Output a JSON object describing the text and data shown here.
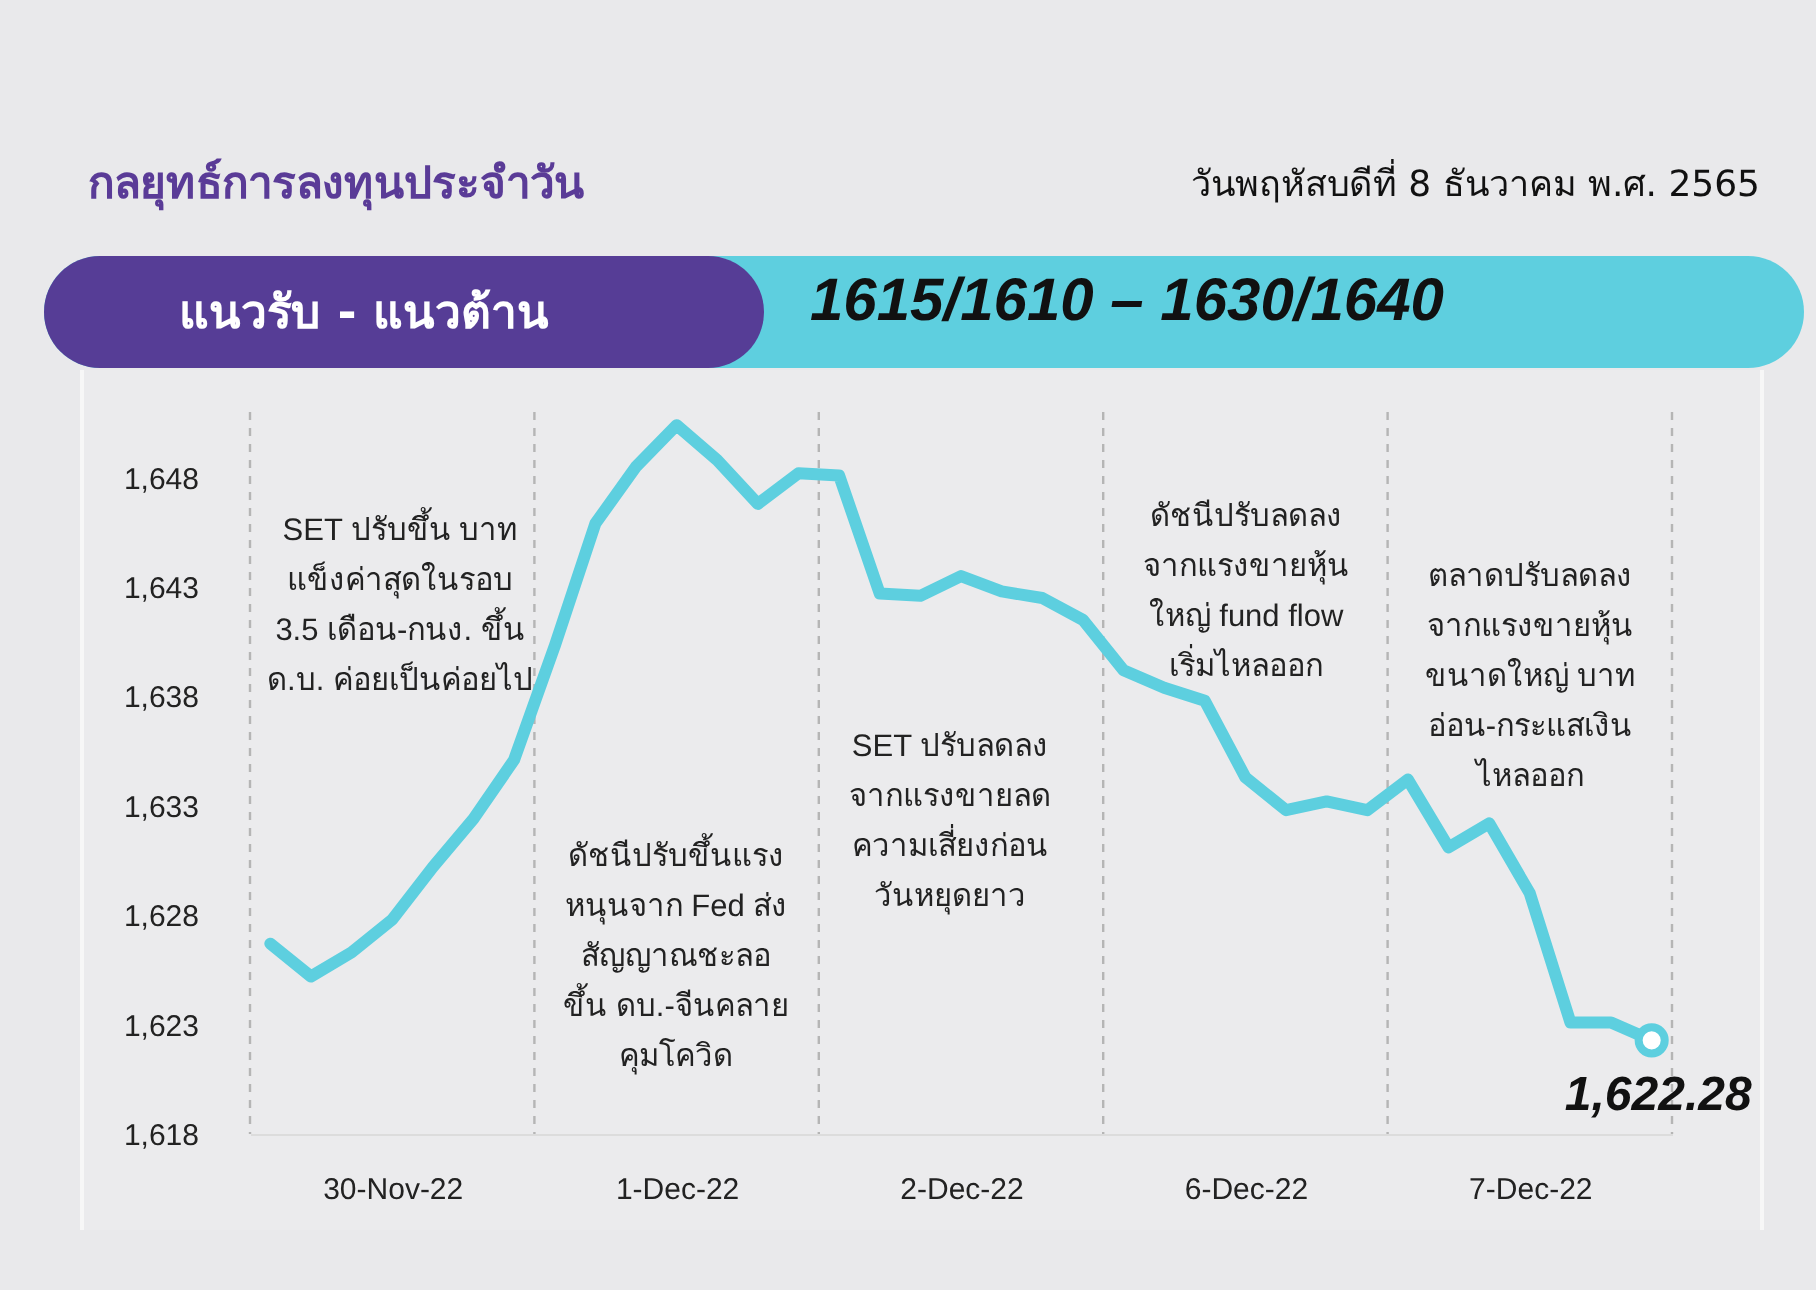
{
  "chart_data": {
    "type": "line",
    "title": "กลยุทธ์การลงทุนประจำวัน",
    "subtitle": "วันพฤหัสบดีที่ 8 ธันวาคม พ.ศ. 2565",
    "annotations": [
      "แนวรับ - แนวต้าน",
      "1615/1610 – 1630/1640",
      "SET ปรับขึ้น บาท\nแข็งค่าสุดในรอบ\n3.5 เดือน-กนง. ขึ้น\nด.บ. ค่อยเป็นค่อยไป",
      "ดัชนีปรับขึ้นแรง\nหนุนจาก Fed ส่ง\nสัญญาณชะลอ\nขึ้น ดบ.-จีนคลาย\nคุมโควิด",
      "SET ปรับลดลง\nจากแรงขายลด\nความเสี่ยงก่อน\nวันหยุดยาว",
      "ดัชนีปรับลดลง\nจากแรงขายหุ้น\nใหญ่ fund flow\nเริ่มไหลออก",
      "ตลาดปรับลดลง\nจากแรงขายหุ้น\nขนาดใหญ่ บาท\nอ่อน-กระแสเงิน\nไหลออก",
      {
        "text": "1,622.28",
        "y": 1622.28
      }
    ],
    "categories": [
      null,
      null,
      null,
      "30-Nov-22",
      null,
      null,
      null,
      null,
      null,
      null,
      "1-Dec-22",
      null,
      null,
      null,
      null,
      null,
      null,
      "2-Dec-22",
      null,
      null,
      null,
      null,
      null,
      null,
      "6-Dec-22",
      null,
      null,
      null,
      null,
      null,
      null,
      "7-Dec-22",
      null,
      null,
      null
    ],
    "series": [
      {
        "color": "#5dcfdf",
        "marker": "none",
        "values": [
          1626.7,
          1625.2,
          1626.3,
          1627.8,
          1630.2,
          1632.4,
          1635.1,
          1640.3,
          1645.9,
          1648.5,
          1650.4,
          1648.8,
          1646.8,
          1648.2,
          1648.1,
          1642.7,
          1642.6,
          1643.5,
          1642.8,
          1642.5,
          1641.5,
          1639.2,
          1638.4,
          1637.8,
          1634.3,
          1632.8,
          1633.2,
          1632.8,
          1634.2,
          1631.1,
          1632.2,
          1629.0,
          1623.1,
          1623.1,
          1622.28
        ]
      },
      {
        "type": "scatter",
        "color": "#5dcfdf",
        "marker": "circle",
        "values": [
          null,
          null,
          null,
          null,
          null,
          null,
          null,
          null,
          null,
          null,
          null,
          null,
          null,
          null,
          null,
          null,
          null,
          null,
          null,
          null,
          null,
          null,
          null,
          null,
          null,
          null,
          null,
          null,
          null,
          null,
          null,
          null,
          null,
          null,
          1622.28
        ]
      }
    ],
    "ylim": [
      1618,
      1651
    ],
    "yticks": [
      {
        "value": 1618,
        "label": "1,618"
      },
      {
        "value": 1623,
        "label": "1,623"
      },
      {
        "value": 1628,
        "label": "1,628"
      },
      {
        "value": 1633,
        "label": "1,633"
      },
      {
        "value": 1638,
        "label": "1,638"
      },
      {
        "value": 1643,
        "label": "1,643"
      },
      {
        "value": 1648,
        "label": "1,648"
      }
    ],
    "line_style": "solid"
  }
}
